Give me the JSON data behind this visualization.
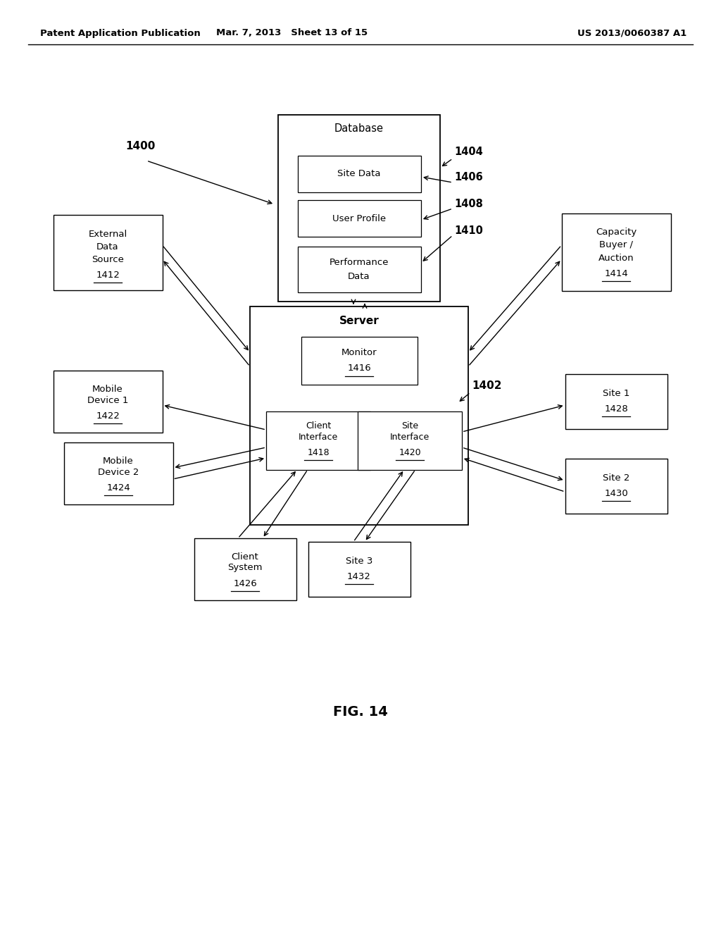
{
  "bg_color": "#ffffff",
  "header_left": "Patent Application Publication",
  "header_mid": "Mar. 7, 2013   Sheet 13 of 15",
  "header_right": "US 2013/0060387 A1",
  "fig_label": "FIG. 14",
  "ref_1400": "1400",
  "ref_1402": "1402",
  "ref_1404": "1404",
  "ref_1406": "1406",
  "ref_1408": "1408",
  "ref_1410": "1410",
  "ref_1412": "1412",
  "ref_1414": "1414",
  "ref_1416": "1416",
  "ref_1418": "1418",
  "ref_1420": "1420",
  "ref_1422": "1422",
  "ref_1424": "1424",
  "ref_1426": "1426",
  "ref_1428": "1428",
  "ref_1430": "1430",
  "ref_1432": "1432"
}
